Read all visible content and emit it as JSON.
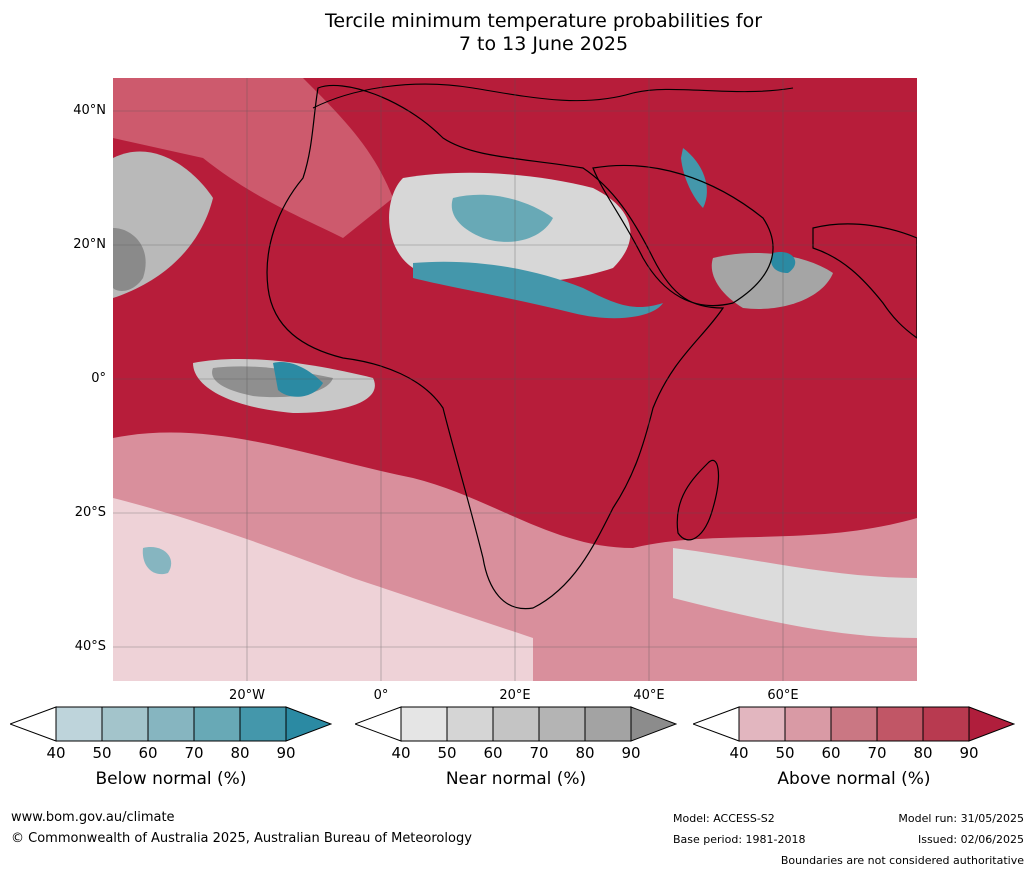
{
  "title_line1": "Tercile minimum temperature probabilities for",
  "title_line2": "7 to 13 June 2025",
  "lat_labels": [
    "40°N",
    "20°N",
    "0°",
    "20°S",
    "40°S"
  ],
  "lon_labels": [
    "20°W",
    "0°",
    "20°E",
    "40°E",
    "60°E"
  ],
  "colorbars": [
    {
      "label": "Below normal (%)",
      "ticks": [
        "40",
        "50",
        "60",
        "70",
        "80",
        "90"
      ],
      "colors": [
        "#bed4db",
        "#a3c4cb",
        "#86b5c0",
        "#68a9b6",
        "#4497ab",
        "#2b8aa3"
      ]
    },
    {
      "label": "Near normal (%)",
      "ticks": [
        "40",
        "50",
        "60",
        "70",
        "80",
        "90"
      ],
      "colors": [
        "#e5e5e5",
        "#d5d5d5",
        "#c4c4c4",
        "#b4b4b4",
        "#a3a3a3",
        "#8c8c8c"
      ]
    },
    {
      "label": "Above normal (%)",
      "ticks": [
        "40",
        "50",
        "60",
        "70",
        "80",
        "90"
      ],
      "colors": [
        "#e2b6bf",
        "#d99aa5",
        "#ca7783",
        "#c15666",
        "#b83a50",
        "#b01e3c"
      ]
    }
  ],
  "footer": {
    "website": "www.bom.gov.au/climate",
    "copyright": "© Commonwealth of Australia 2025, Australian Bureau of Meteorology",
    "model": "Model: ACCESS-S2",
    "base_period": "Base period: 1981-2018",
    "model_run": "Model run: 31/05/2025",
    "issued": "Issued: 02/06/2025",
    "disclaimer": "Boundaries are not considered authoritative"
  }
}
